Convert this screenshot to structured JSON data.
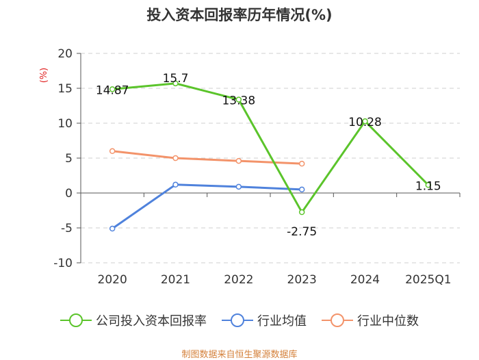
{
  "title": "投入资本回报率历年情况(%)",
  "source": "制图数据来自恒生聚源数据库",
  "chart_data": {
    "type": "line",
    "title": "投入资本回报率历年情况(%)",
    "ylabel": "(%)",
    "xlabel": "",
    "ylim": [
      -10,
      20
    ],
    "yticks": [
      -10,
      -5,
      0,
      5,
      10,
      15,
      20
    ],
    "grid": true,
    "legend_position": "bottom",
    "categories": [
      "2020",
      "2021",
      "2022",
      "2023",
      "2024",
      "2025Q1"
    ],
    "series": [
      {
        "name": "公司投入资本回报率",
        "color": "#5bc42b",
        "values": [
          14.87,
          15.7,
          13.38,
          -2.75,
          10.28,
          1.15
        ],
        "labels": [
          "14.87",
          "15.7",
          "13.38",
          "-2.75",
          "10.28",
          "1.15"
        ]
      },
      {
        "name": "行业均值",
        "color": "#4f82dc",
        "values": [
          -5.1,
          1.2,
          0.9,
          0.5,
          null,
          null
        ]
      },
      {
        "name": "行业中位数",
        "color": "#f3936a",
        "values": [
          6.0,
          5.0,
          4.6,
          4.2,
          null,
          null
        ]
      }
    ]
  }
}
